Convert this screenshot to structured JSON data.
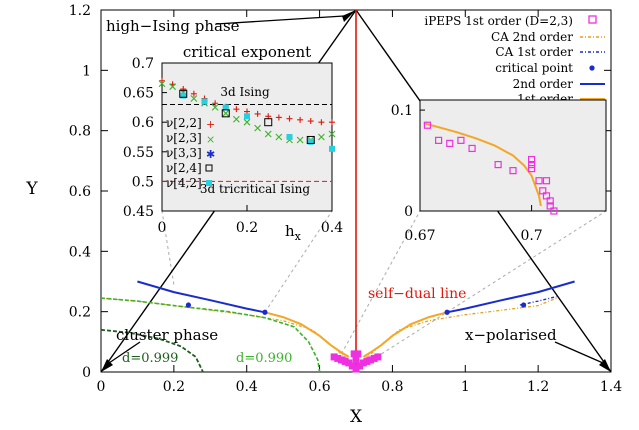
{
  "chart_data": {
    "type": "line",
    "xlabel": "X",
    "ylabel": "Y",
    "xlim": [
      0,
      1.4
    ],
    "ylim": [
      0,
      1.2
    ],
    "xticks": [
      "0",
      "0.2",
      "0.4",
      "0.6",
      "0.8",
      "1",
      "1.2",
      "1.4"
    ],
    "yticks": [
      "0",
      "0.2",
      "0.4",
      "0.6",
      "0.8",
      "1",
      "1.2"
    ],
    "triangle": [
      [
        0,
        0
      ],
      [
        0.7,
        1.2
      ],
      [
        1.4,
        0
      ]
    ],
    "self_dual_line": {
      "x": [
        0.7,
        0.7
      ],
      "y": [
        0,
        1.2
      ]
    },
    "annotations": {
      "high_ising": "high−Ising phase",
      "self_dual": "self−dual line",
      "cluster": "cluster phase",
      "x_polarised": "x−polarised",
      "d1": "d=0.999",
      "d2": "d=0.990"
    },
    "legend": [
      "iPEPS 1st order (D=2,3)",
      "CA 2nd order",
      "CA 1st order",
      "critical point",
      "2nd order",
      "1st order"
    ],
    "curves": {
      "second_left": [
        [
          0.1,
          0.3
        ],
        [
          0.2,
          0.265
        ],
        [
          0.3,
          0.238
        ],
        [
          0.4,
          0.21
        ],
        [
          0.45,
          0.198
        ]
      ],
      "first_left": [
        [
          0.45,
          0.198
        ],
        [
          0.5,
          0.182
        ],
        [
          0.55,
          0.158
        ],
        [
          0.6,
          0.12
        ],
        [
          0.63,
          0.09
        ],
        [
          0.66,
          0.065
        ],
        [
          0.68,
          0.05
        ]
      ],
      "first_right": [
        [
          0.72,
          0.05
        ],
        [
          0.74,
          0.065
        ],
        [
          0.77,
          0.09
        ],
        [
          0.8,
          0.12
        ],
        [
          0.85,
          0.158
        ],
        [
          0.9,
          0.182
        ],
        [
          0.95,
          0.198
        ]
      ],
      "second_right": [
        [
          0.95,
          0.198
        ],
        [
          1.0,
          0.21
        ],
        [
          1.1,
          0.238
        ],
        [
          1.2,
          0.265
        ],
        [
          1.3,
          0.3
        ]
      ],
      "ca2_left": [
        [
          0.0,
          0.245
        ],
        [
          0.1,
          0.235
        ],
        [
          0.2,
          0.22
        ],
        [
          0.3,
          0.205
        ],
        [
          0.4,
          0.19
        ],
        [
          0.5,
          0.17
        ],
        [
          0.58,
          0.14
        ],
        [
          0.64,
          0.08
        ],
        [
          0.68,
          0.04
        ],
        [
          0.7,
          0.0
        ]
      ],
      "ca2_right": [
        [
          0.7,
          0.0
        ],
        [
          0.72,
          0.04
        ],
        [
          0.76,
          0.08
        ],
        [
          0.82,
          0.14
        ],
        [
          0.9,
          0.17
        ],
        [
          1.0,
          0.19
        ],
        [
          1.1,
          0.205
        ],
        [
          1.2,
          0.22
        ],
        [
          1.25,
          0.245
        ]
      ],
      "ca1_right": [
        [
          1.15,
          0.222
        ],
        [
          1.2,
          0.235
        ],
        [
          1.25,
          0.25
        ]
      ],
      "d0999": [
        [
          0.0,
          0.14
        ],
        [
          0.08,
          0.13
        ],
        [
          0.16,
          0.11
        ],
        [
          0.22,
          0.085
        ],
        [
          0.26,
          0.05
        ],
        [
          0.28,
          0.0
        ]
      ],
      "d0990": [
        [
          0.0,
          0.245
        ],
        [
          0.1,
          0.235
        ],
        [
          0.2,
          0.22
        ],
        [
          0.35,
          0.2
        ],
        [
          0.45,
          0.18
        ],
        [
          0.53,
          0.15
        ],
        [
          0.57,
          0.1
        ],
        [
          0.595,
          0.04
        ],
        [
          0.6,
          0.0
        ]
      ],
      "ipeps_points": [
        [
          0.64,
          0.05
        ],
        [
          0.65,
          0.045
        ],
        [
          0.66,
          0.04
        ],
        [
          0.67,
          0.035
        ],
        [
          0.68,
          0.03
        ],
        [
          0.69,
          0.02
        ],
        [
          0.7,
          0.01
        ],
        [
          0.71,
          0.02
        ],
        [
          0.72,
          0.03
        ],
        [
          0.73,
          0.035
        ],
        [
          0.74,
          0.04
        ],
        [
          0.75,
          0.045
        ],
        [
          0.76,
          0.05
        ],
        [
          0.695,
          0.06
        ],
        [
          0.705,
          0.06
        ],
        [
          0.7,
          0.04
        ]
      ],
      "critical_points": [
        [
          0.24,
          0.222
        ],
        [
          0.45,
          0.198
        ],
        [
          0.95,
          0.198
        ],
        [
          1.16,
          0.222
        ]
      ]
    },
    "inset_left": {
      "title": "critical exponent",
      "xlabel": "h",
      "xlabel_sub": "x",
      "xlim": [
        0,
        0.4
      ],
      "ylim": [
        0.45,
        0.7
      ],
      "xticks": [
        "0",
        "0.2",
        "0.4"
      ],
      "yticks": [
        "0.45",
        "0.5",
        "0.55",
        "0.6",
        "0.65",
        "0.7"
      ],
      "ising3d": {
        "value": 0.63,
        "label": "3d Ising"
      },
      "tricritical": {
        "value": 0.5,
        "label": "3d tricritical Ising"
      },
      "series_labels": [
        "ν[2,2]",
        "ν[2,3]",
        "ν[3,3]",
        "ν[2,4]",
        "ν[4,2]"
      ],
      "nu22": [
        [
          0.0,
          0.67
        ],
        [
          0.025,
          0.664
        ],
        [
          0.05,
          0.656
        ],
        [
          0.075,
          0.648
        ],
        [
          0.1,
          0.64
        ],
        [
          0.125,
          0.632
        ],
        [
          0.15,
          0.626
        ],
        [
          0.175,
          0.622
        ],
        [
          0.2,
          0.618
        ],
        [
          0.225,
          0.614
        ],
        [
          0.25,
          0.61
        ],
        [
          0.275,
          0.608
        ],
        [
          0.3,
          0.606
        ],
        [
          0.325,
          0.604
        ],
        [
          0.35,
          0.602
        ],
        [
          0.375,
          0.6
        ],
        [
          0.4,
          0.6
        ]
      ],
      "nu23": [
        [
          0.0,
          0.665
        ],
        [
          0.025,
          0.66
        ],
        [
          0.05,
          0.65
        ],
        [
          0.075,
          0.64
        ],
        [
          0.1,
          0.632
        ],
        [
          0.125,
          0.625
        ],
        [
          0.15,
          0.615
        ],
        [
          0.175,
          0.605
        ],
        [
          0.2,
          0.6
        ],
        [
          0.225,
          0.59
        ],
        [
          0.25,
          0.58
        ],
        [
          0.275,
          0.575
        ],
        [
          0.3,
          0.57
        ],
        [
          0.325,
          0.57
        ],
        [
          0.35,
          0.57
        ],
        [
          0.375,
          0.575
        ],
        [
          0.4,
          0.58
        ]
      ],
      "nu24": [
        [
          0.05,
          0.648
        ],
        [
          0.15,
          0.615
        ],
        [
          0.25,
          0.6
        ],
        [
          0.35,
          0.57
        ]
      ],
      "nu42": [
        [
          0.05,
          0.645
        ],
        [
          0.1,
          0.635
        ],
        [
          0.15,
          0.625
        ],
        [
          0.2,
          0.61
        ],
        [
          0.3,
          0.575
        ],
        [
          0.35,
          0.567
        ],
        [
          0.4,
          0.555
        ]
      ]
    },
    "inset_right": {
      "xlim": [
        0.67,
        0.72
      ],
      "ylim": [
        0,
        0.11
      ],
      "xticks": [
        "0.67",
        "0.7"
      ],
      "yticks": [
        "0",
        "0.1"
      ],
      "curve": [
        [
          0.671,
          0.087
        ],
        [
          0.675,
          0.083
        ],
        [
          0.68,
          0.078
        ],
        [
          0.685,
          0.072
        ],
        [
          0.69,
          0.065
        ],
        [
          0.695,
          0.055
        ],
        [
          0.698,
          0.045
        ],
        [
          0.7,
          0.035
        ],
        [
          0.701,
          0.025
        ],
        [
          0.702,
          0.015
        ],
        [
          0.7025,
          0.005
        ]
      ],
      "points": [
        [
          0.672,
          0.085
        ],
        [
          0.675,
          0.07
        ],
        [
          0.678,
          0.067
        ],
        [
          0.681,
          0.07
        ],
        [
          0.684,
          0.062
        ],
        [
          0.691,
          0.046
        ],
        [
          0.695,
          0.04
        ],
        [
          0.7,
          0.042
        ],
        [
          0.7,
          0.046
        ],
        [
          0.7,
          0.051
        ],
        [
          0.702,
          0.03
        ],
        [
          0.703,
          0.02
        ],
        [
          0.704,
          0.015
        ],
        [
          0.705,
          0.01
        ],
        [
          0.705,
          0.005
        ],
        [
          0.706,
          0.0
        ],
        [
          0.704,
          0.03
        ]
      ]
    }
  }
}
